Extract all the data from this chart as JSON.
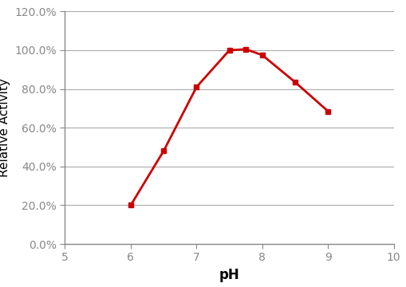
{
  "x": [
    6.0,
    6.5,
    7.0,
    7.5,
    7.75,
    8.0,
    8.5,
    9.0
  ],
  "y": [
    0.2,
    0.48,
    0.81,
    1.0,
    1.005,
    0.975,
    0.835,
    0.685
  ],
  "line_color": "#CC0000",
  "marker": "s",
  "marker_color": "#CC0000",
  "marker_size": 5,
  "linewidth": 2.0,
  "xlabel": "pH",
  "ylabel": "Relative Activity",
  "xlim": [
    5,
    10
  ],
  "ylim": [
    0.0,
    1.2
  ],
  "xticks": [
    5,
    6,
    7,
    8,
    9,
    10
  ],
  "yticks": [
    0.0,
    0.2,
    0.4,
    0.6,
    0.8,
    1.0,
    1.2
  ],
  "grid_color": "#aaaaaa",
  "background_color": "#ffffff",
  "xlabel_fontsize": 12,
  "ylabel_fontsize": 11,
  "tick_fontsize": 10,
  "spine_color": "#888888"
}
